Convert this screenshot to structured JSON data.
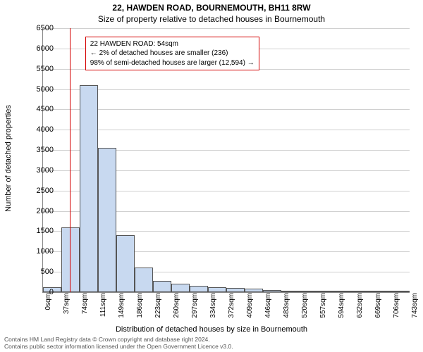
{
  "title_main": "22, HAWDEN ROAD, BOURNEMOUTH, BH11 8RW",
  "title_sub": "Size of property relative to detached houses in Bournemouth",
  "ylabel": "Number of detached properties",
  "xlabel": "Distribution of detached houses by size in Bournemouth",
  "callout_line1": "22 HAWDEN ROAD: 54sqm",
  "callout_line2": "← 2% of detached houses are smaller (236)",
  "callout_line3": "98% of semi-detached houses are larger (12,594) →",
  "footer_line1": "Contains HM Land Registry data © Crown copyright and database right 2024.",
  "footer_line2": "Contains public sector information licensed under the Open Government Licence v3.0.",
  "chart": {
    "type": "histogram",
    "background_color": "#ffffff",
    "grid_color": "#d0d0d0",
    "axis_color": "#888888",
    "bar_fill": "#c8d9f0",
    "bar_border": "#555555",
    "marker_color": "#d40000",
    "callout_border": "#d40000",
    "ylim": [
      0,
      6500
    ],
    "ytick_step": 500,
    "x_bin_width_sqm": 37,
    "x_tick_labels": [
      "0sqm",
      "37sqm",
      "74sqm",
      "111sqm",
      "149sqm",
      "186sqm",
      "223sqm",
      "260sqm",
      "297sqm",
      "334sqm",
      "372sqm",
      "409sqm",
      "446sqm",
      "483sqm",
      "520sqm",
      "557sqm",
      "594sqm",
      "632sqm",
      "669sqm",
      "706sqm",
      "743sqm"
    ],
    "bar_values": [
      120,
      1600,
      5100,
      3550,
      1400,
      600,
      280,
      200,
      150,
      120,
      100,
      80,
      60,
      10,
      8,
      6,
      5,
      4,
      3,
      2
    ],
    "marker_value_sqm": 54,
    "x_max_sqm": 743,
    "callout_position_bar_index": 2.3,
    "callout_top_value": 6300
  }
}
